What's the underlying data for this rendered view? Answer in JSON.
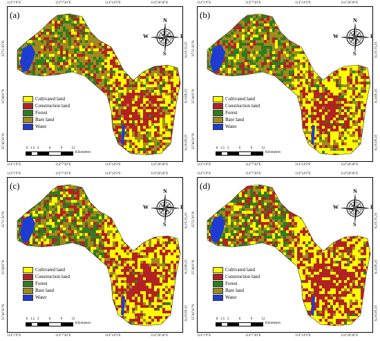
{
  "panels": [
    {
      "label": "(a)",
      "mix": "a"
    },
    {
      "label": "(b)",
      "mix": "b"
    },
    {
      "label": "(c)",
      "mix": "c"
    },
    {
      "label": "(d)",
      "mix": "d"
    }
  ],
  "ticks": {
    "top": [
      "114°1'9\"E",
      "114°7'30\"E",
      "114°14'9\"E",
      "114°20'30\"E"
    ],
    "bottom": [
      "114°1'9\"E",
      "114°7'30\"E",
      "114°14'9\"E",
      "114°20'30\"E"
    ],
    "left": [
      "35°51'30\"N",
      "35°46'0\"N",
      "35°40'30\"N"
    ],
    "right": [
      "35°51'30\"N",
      "35°46'0\"N",
      "35°40'30\"N"
    ]
  },
  "legend": [
    {
      "label": "Cultivated land",
      "color": "#ffff00"
    },
    {
      "label": "Construction land",
      "color": "#b22222"
    },
    {
      "label": "Forest",
      "color": "#2e7d1e"
    },
    {
      "label": "Bare land",
      "color": "#a08a1e"
    },
    {
      "label": "Water",
      "color": "#1e3cd2"
    }
  ],
  "scale": {
    "numbers": [
      "0",
      "1.5",
      "3",
      "6",
      "9",
      "12"
    ],
    "unit": "Kilometers"
  },
  "compass": {
    "n": "N",
    "s": "S",
    "e": "E",
    "w": "W"
  }
}
